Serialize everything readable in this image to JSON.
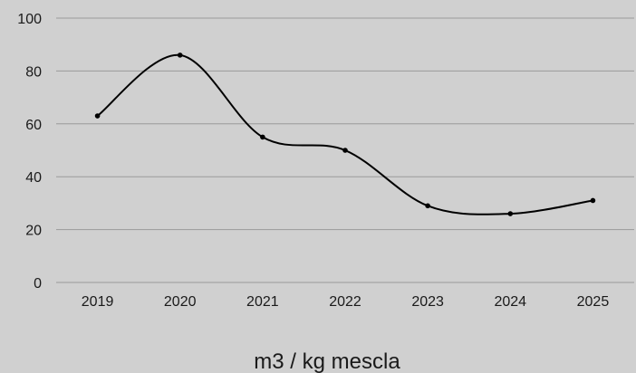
{
  "chart_data": {
    "type": "line",
    "title": "",
    "xlabel": "m3 / kg mescla",
    "ylabel": "",
    "categories": [
      "2019",
      "2020",
      "2021",
      "2022",
      "2023",
      "2024",
      "2025"
    ],
    "series": [
      {
        "values": [
          63,
          86,
          55,
          50,
          29,
          26,
          31
        ]
      }
    ],
    "ylim": [
      0,
      100
    ],
    "yticks": [
      0,
      20,
      40,
      60,
      80,
      100
    ],
    "grid": true,
    "smooth": true,
    "markers": true,
    "legend": "none",
    "colors": {
      "background": "#d0d0d0",
      "line": "#000000",
      "grid": "#9a9a9a",
      "text": "#1a1a1a"
    }
  }
}
